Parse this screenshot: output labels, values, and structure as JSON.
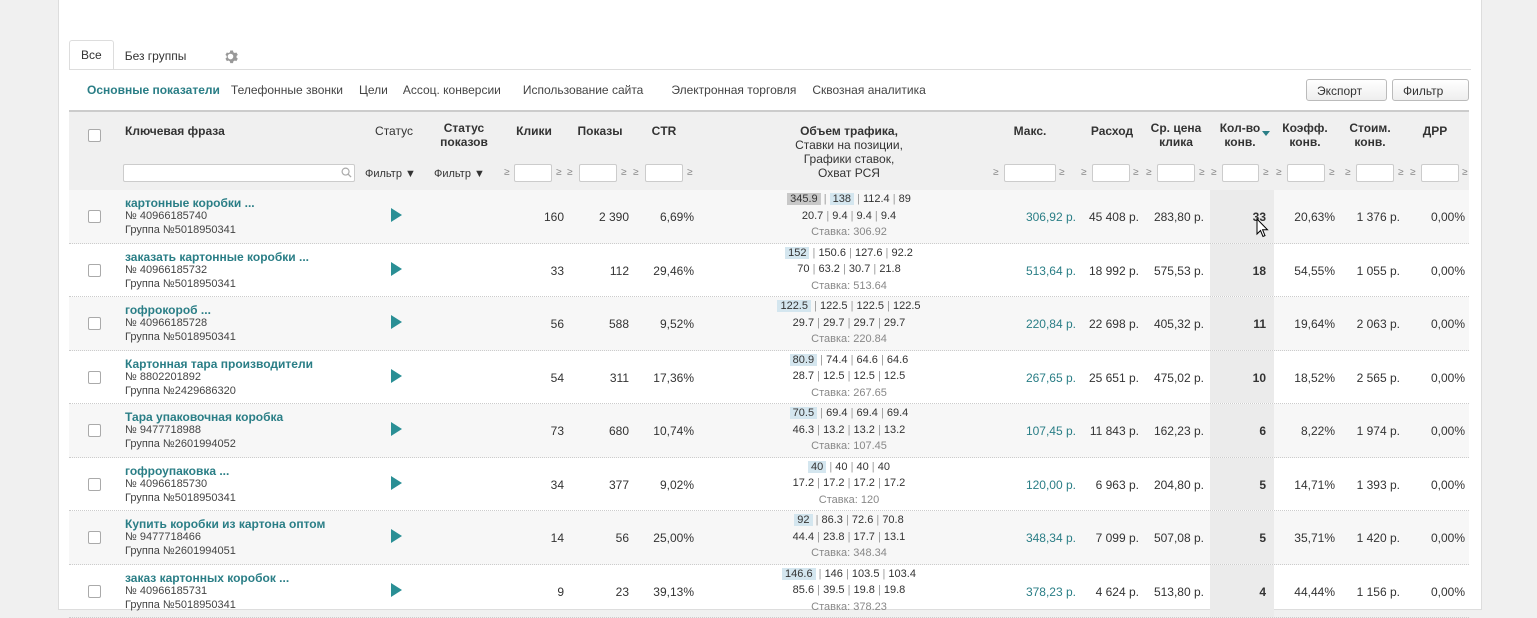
{
  "tabs": [
    "Все",
    "Без группы"
  ],
  "metric_tabs": [
    "Основные показатели",
    "Телефонные звонки",
    "Цели",
    "Ассоц. конверсии",
    "Использование сайта",
    "Электронная торговля",
    "Сквозная аналитика"
  ],
  "buttons": {
    "export": "Экспорт ▼",
    "filter": "Фильтр ▼"
  },
  "columns": {
    "keyword": "Ключевая фраза",
    "status": "Статус",
    "show_status": "Статус\nпоказов",
    "clicks": "Клики",
    "shows": "Показы",
    "ctr": "CTR",
    "traffic_line1": "Объем трафика,",
    "traffic_line2": "Ставки на позиции,",
    "traffic_line3": "Графики ставок,",
    "traffic_line4": "Охват РСЯ",
    "max": "Макс.",
    "spend": "Расход",
    "cpc_1": "Ср. цена",
    "cpc_2": "клика",
    "conv_1": "Кол-во",
    "conv_2": "конв.",
    "rate_1": "Коэфф.",
    "rate_2": "конв.",
    "cost_1": "Стоим.",
    "cost_2": "конв.",
    "drr": "ДРР"
  },
  "filter_label": "Фильтр ▼",
  "ge": "≥",
  "rows": [
    {
      "kw": "картонные коробки ...",
      "id": "№ 40966185740",
      "group": "Группа №5018950341",
      "clicks": "160",
      "shows": "2 390",
      "ctr": "6,69%",
      "t1": [
        "345.9",
        "138",
        "112.4",
        "89"
      ],
      "t2": [
        "20.7",
        "9.4",
        "9.4",
        "9.4"
      ],
      "rate": "Ставка: 306.92",
      "max": "306,92 р.",
      "spend": "45 408 р.",
      "cpc": "283,80 р.",
      "conv": "33",
      "crate": "20,63%",
      "cost": "1 376 р.",
      "drr": "0,00%"
    },
    {
      "kw": "заказать картонные коробки ...",
      "id": "№ 40966185732",
      "group": "Группа №5018950341",
      "clicks": "33",
      "shows": "112",
      "ctr": "29,46%",
      "t1": [
        "152",
        "150.6",
        "127.6",
        "92.2"
      ],
      "t2": [
        "70",
        "63.2",
        "30.7",
        "21.8"
      ],
      "rate": "Ставка: 513.64",
      "max": "513,64 р.",
      "spend": "18 992 р.",
      "cpc": "575,53 р.",
      "conv": "18",
      "crate": "54,55%",
      "cost": "1 055 р.",
      "drr": "0,00%"
    },
    {
      "kw": "гофрокороб ...",
      "id": "№ 40966185728",
      "group": "Группа №5018950341",
      "clicks": "56",
      "shows": "588",
      "ctr": "9,52%",
      "t1": [
        "122.5",
        "122.5",
        "122.5",
        "122.5"
      ],
      "t2": [
        "29.7",
        "29.7",
        "29.7",
        "29.7"
      ],
      "rate": "Ставка: 220.84",
      "max": "220,84 р.",
      "spend": "22 698 р.",
      "cpc": "405,32 р.",
      "conv": "11",
      "crate": "19,64%",
      "cost": "2 063 р.",
      "drr": "0,00%"
    },
    {
      "kw": "Картонная тара производители",
      "id": "№ 8802201892",
      "group": "Группа №2429686320",
      "clicks": "54",
      "shows": "311",
      "ctr": "17,36%",
      "t1": [
        "80.9",
        "74.4",
        "64.6",
        "64.6"
      ],
      "t2": [
        "28.7",
        "12.5",
        "12.5",
        "12.5"
      ],
      "rate": "Ставка: 267.65",
      "max": "267,65 р.",
      "spend": "25 651 р.",
      "cpc": "475,02 р.",
      "conv": "10",
      "crate": "18,52%",
      "cost": "2 565 р.",
      "drr": "0,00%"
    },
    {
      "kw": "Тара упаковочная коробка",
      "id": "№ 9477718988",
      "group": "Группа №2601994052",
      "clicks": "73",
      "shows": "680",
      "ctr": "10,74%",
      "t1": [
        "70.5",
        "69.4",
        "69.4",
        "69.4"
      ],
      "t2": [
        "46.3",
        "13.2",
        "13.2",
        "13.2"
      ],
      "rate": "Ставка: 107.45",
      "max": "107,45 р.",
      "spend": "11 843 р.",
      "cpc": "162,23 р.",
      "conv": "6",
      "crate": "8,22%",
      "cost": "1 974 р.",
      "drr": "0,00%"
    },
    {
      "kw": "гофроупаковка ...",
      "id": "№ 40966185730",
      "group": "Группа №5018950341",
      "clicks": "34",
      "shows": "377",
      "ctr": "9,02%",
      "t1": [
        "40",
        "40",
        "40",
        "40"
      ],
      "t2": [
        "17.2",
        "17.2",
        "17.2",
        "17.2"
      ],
      "rate": "Ставка: 120",
      "max": "120,00 р.",
      "spend": "6 963 р.",
      "cpc": "204,80 р.",
      "conv": "5",
      "crate": "14,71%",
      "cost": "1 393 р.",
      "drr": "0,00%"
    },
    {
      "kw": "Купить коробки из картона оптом",
      "id": "№ 9477718466",
      "group": "Группа №2601994051",
      "clicks": "14",
      "shows": "56",
      "ctr": "25,00%",
      "t1": [
        "92",
        "86.3",
        "72.6",
        "70.8"
      ],
      "t2": [
        "44.4",
        "23.8",
        "17.7",
        "13.1"
      ],
      "rate": "Ставка: 348.34",
      "max": "348,34 р.",
      "spend": "7 099 р.",
      "cpc": "507,08 р.",
      "conv": "5",
      "crate": "35,71%",
      "cost": "1 420 р.",
      "drr": "0,00%"
    },
    {
      "kw": "заказ картонных коробок ...",
      "id": "№ 40966185731",
      "group": "Группа №5018950341",
      "clicks": "9",
      "shows": "23",
      "ctr": "39,13%",
      "t1": [
        "146.6",
        "146",
        "103.5",
        "103.4"
      ],
      "t2": [
        "85.6",
        "39.5",
        "19.8",
        "19.8"
      ],
      "rate": "Ставка: 378.23",
      "max": "378,23 р.",
      "spend": "4 624 р.",
      "cpc": "513,80 р.",
      "conv": "4",
      "crate": "44,44%",
      "cost": "1 156 р.",
      "drr": "0,00%"
    }
  ]
}
